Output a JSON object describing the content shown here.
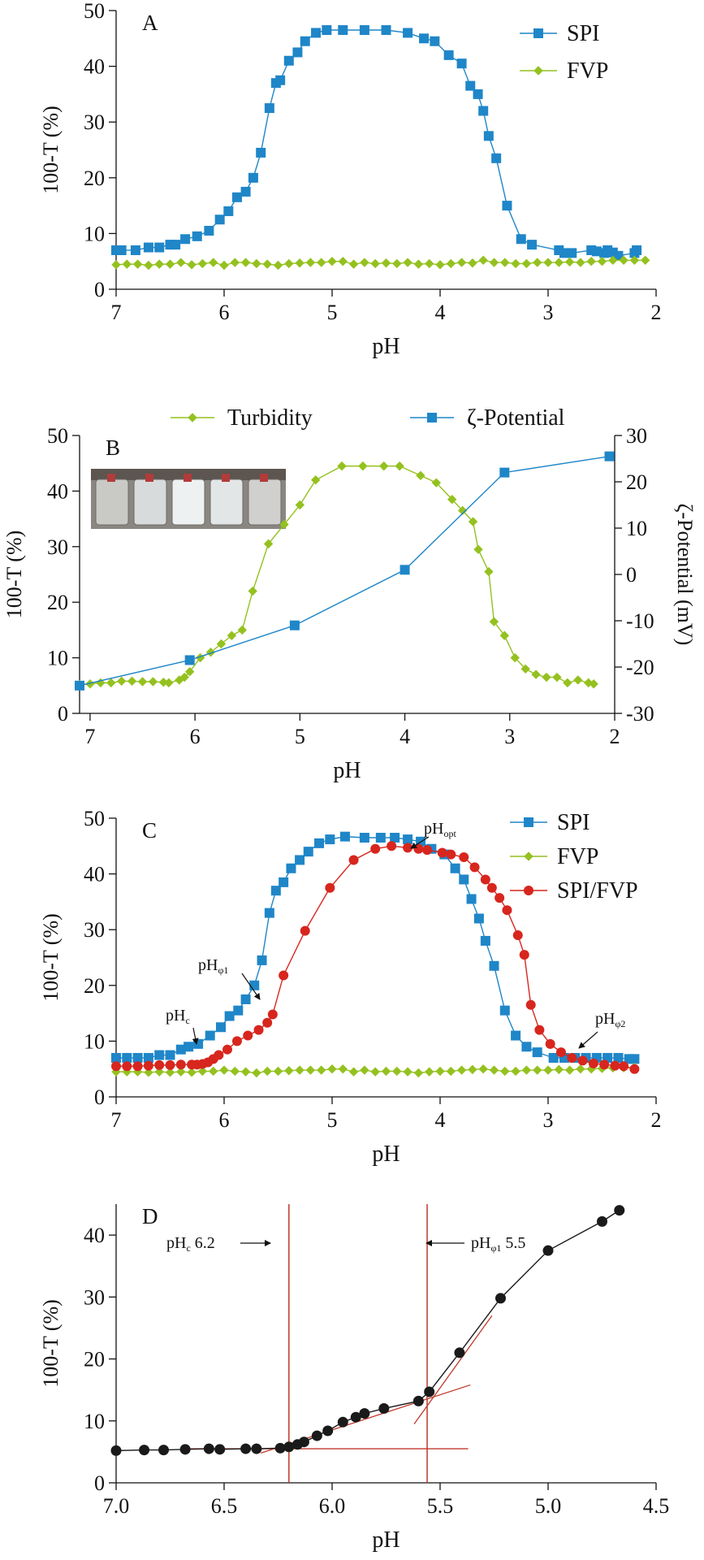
{
  "colors": {
    "spi": "#1f86c8",
    "fvp": "#94c11f",
    "mix": "#d7261e",
    "fit": "#c0392b",
    "black": "#1a1a1a",
    "photo_bg": "#8a8782"
  },
  "chart_data": [
    {
      "panel": "A",
      "type": "line",
      "title": "A",
      "xlabel": "pH",
      "ylabel": "100-T (%)",
      "xlim": [
        7,
        2
      ],
      "ylim": [
        0,
        50
      ],
      "xticks": [
        7,
        6,
        5,
        4,
        3,
        2
      ],
      "yticks": [
        0,
        10,
        20,
        30,
        40,
        50
      ],
      "legend_position": "top-right",
      "series": [
        {
          "name": "SPI",
          "color": "#1f86c8",
          "marker": "square",
          "x": [
            7.0,
            6.95,
            6.82,
            6.7,
            6.6,
            6.5,
            6.45,
            6.36,
            6.25,
            6.14,
            6.04,
            5.96,
            5.88,
            5.8,
            5.73,
            5.66,
            5.58,
            5.52,
            5.48,
            5.4,
            5.32,
            5.25,
            5.15,
            5.05,
            4.9,
            4.7,
            4.5,
            4.3,
            4.15,
            4.05,
            3.92,
            3.8,
            3.72,
            3.65,
            3.6,
            3.55,
            3.48,
            3.38,
            3.25,
            3.15,
            2.9,
            2.85,
            2.78,
            2.6,
            2.55,
            2.48,
            2.45,
            2.4,
            2.35,
            2.2,
            2.18
          ],
          "y": [
            7,
            7,
            7,
            7.5,
            7.5,
            8,
            8,
            9,
            9.5,
            10.5,
            12.5,
            14,
            16.5,
            17.5,
            20,
            24.5,
            32.5,
            37,
            37.5,
            41,
            42.5,
            44.5,
            46,
            46.5,
            46.5,
            46.5,
            46.5,
            46,
            45,
            44.5,
            42,
            40.5,
            36.5,
            35,
            32,
            27.5,
            23.5,
            15,
            9,
            8,
            7,
            6.5,
            6.5,
            7,
            6.8,
            6.5,
            7,
            6.6,
            6,
            6.5,
            7
          ]
        },
        {
          "name": "FVP",
          "color": "#94c11f",
          "marker": "diamond",
          "x": [
            7.0,
            6.9,
            6.8,
            6.7,
            6.6,
            6.5,
            6.4,
            6.3,
            6.2,
            6.1,
            6.0,
            5.9,
            5.8,
            5.7,
            5.6,
            5.5,
            5.4,
            5.3,
            5.2,
            5.1,
            5.0,
            4.9,
            4.8,
            4.7,
            4.6,
            4.5,
            4.4,
            4.3,
            4.2,
            4.1,
            4.0,
            3.9,
            3.8,
            3.7,
            3.6,
            3.5,
            3.4,
            3.3,
            3.2,
            3.1,
            3.0,
            2.9,
            2.8,
            2.7,
            2.6,
            2.5,
            2.4,
            2.3,
            2.2,
            2.1
          ],
          "y": [
            4.4,
            4.5,
            4.5,
            4.3,
            4.5,
            4.5,
            4.8,
            4.4,
            4.6,
            4.8,
            4.3,
            4.8,
            4.8,
            4.6,
            4.5,
            4.3,
            4.6,
            4.7,
            4.8,
            4.8,
            5.0,
            5.0,
            4.5,
            4.8,
            4.6,
            4.7,
            4.6,
            4.8,
            4.5,
            4.6,
            4.4,
            4.6,
            4.8,
            4.7,
            5.2,
            4.8,
            4.8,
            4.6,
            4.6,
            4.8,
            4.8,
            4.8,
            4.9,
            4.8,
            5.0,
            5.0,
            5.2,
            5.2,
            5.2,
            5.2
          ]
        }
      ]
    },
    {
      "panel": "B",
      "type": "line",
      "title": "B",
      "xlabel": "pH",
      "ylabel": "100-T (%)",
      "y2label": "ζ-Potential (mV)",
      "xlim": [
        7.1,
        2
      ],
      "ylim": [
        0,
        50
      ],
      "y2lim": [
        -30,
        30
      ],
      "xticks": [
        7,
        6,
        5,
        4,
        3,
        2
      ],
      "yticks": [
        0,
        10,
        20,
        30,
        40,
        50
      ],
      "y2ticks": [
        -30,
        -20,
        -10,
        0,
        10,
        20,
        30
      ],
      "legend_position": "top",
      "inset": "photo of five glass vials with increasing turbidity",
      "series": [
        {
          "name": "Turbidity",
          "color": "#94c11f",
          "marker": "diamond",
          "axis": "left",
          "x": [
            7.1,
            7.0,
            6.9,
            6.8,
            6.7,
            6.6,
            6.5,
            6.4,
            6.3,
            6.25,
            6.15,
            6.1,
            6.05,
            5.95,
            5.85,
            5.75,
            5.65,
            5.55,
            5.45,
            5.3,
            5.15,
            5.0,
            4.85,
            4.6,
            4.4,
            4.2,
            4.05,
            3.85,
            3.7,
            3.55,
            3.45,
            3.35,
            3.3,
            3.2,
            3.15,
            3.05,
            2.95,
            2.85,
            2.75,
            2.65,
            2.55,
            2.45,
            2.35,
            2.25,
            2.2
          ],
          "y": [
            5.2,
            5.3,
            5.5,
            5.5,
            5.8,
            5.8,
            5.7,
            5.7,
            5.6,
            5.5,
            6,
            6.5,
            7.5,
            10,
            11,
            12.5,
            14,
            15,
            22,
            30.5,
            34,
            37.5,
            42,
            44.5,
            44.5,
            44.5,
            44.5,
            42.8,
            41.5,
            38.5,
            36.5,
            34.5,
            29.5,
            25.5,
            16.5,
            14,
            10,
            8,
            7,
            6.5,
            6.5,
            5.5,
            6.0,
            5.5,
            5.3
          ]
        },
        {
          "name": "ζ-Potential",
          "color": "#1f86c8",
          "marker": "square",
          "axis": "right",
          "x": [
            7.1,
            6.05,
            5.05,
            4.0,
            3.05,
            2.05
          ],
          "y": [
            -24,
            -18.5,
            -11,
            1,
            22,
            25.5
          ]
        }
      ]
    },
    {
      "panel": "C",
      "type": "line",
      "title": "C",
      "xlabel": "pH",
      "ylabel": "100-T (%)",
      "xlim": [
        7,
        2
      ],
      "ylim": [
        0,
        50
      ],
      "xticks": [
        7,
        6,
        5,
        4,
        3,
        2
      ],
      "yticks": [
        0,
        10,
        20,
        30,
        40,
        50
      ],
      "legend_position": "top-right",
      "annotations": [
        {
          "main": "pH",
          "sub": "opt",
          "x": 4.25,
          "y": 45
        },
        {
          "main": "pH",
          "sub": "φ1",
          "x": 5.6,
          "y": 13.5
        },
        {
          "main": "pH",
          "sub": "c",
          "x": 6.2,
          "y": 5.8
        },
        {
          "main": "pH",
          "sub": "φ2",
          "x": 2.72,
          "y": 6.2
        }
      ],
      "series": [
        {
          "name": "SPI",
          "color": "#1f86c8",
          "marker": "square",
          "x": [
            7.0,
            6.9,
            6.8,
            6.7,
            6.6,
            6.5,
            6.4,
            6.33,
            6.24,
            6.13,
            6.03,
            5.95,
            5.87,
            5.8,
            5.72,
            5.65,
            5.58,
            5.52,
            5.45,
            5.38,
            5.3,
            5.22,
            5.12,
            5.02,
            4.88,
            4.7,
            4.55,
            4.42,
            4.3,
            4.18,
            4.08,
            3.96,
            3.86,
            3.78,
            3.71,
            3.64,
            3.58,
            3.5,
            3.4,
            3.3,
            3.2,
            3.1,
            2.95,
            2.85,
            2.75,
            2.65,
            2.55,
            2.45,
            2.35,
            2.25,
            2.2
          ],
          "y": [
            7,
            7,
            7,
            7,
            7.5,
            7.5,
            8.5,
            9,
            9.5,
            11,
            12.5,
            14.5,
            15.5,
            17.5,
            20,
            24.5,
            33,
            37,
            38.5,
            41,
            42.5,
            44,
            45.5,
            46.2,
            46.7,
            46.5,
            46.5,
            46.5,
            46.2,
            45.8,
            44.5,
            43.5,
            41,
            39,
            35.5,
            32,
            28,
            23.5,
            15.5,
            11,
            9,
            8,
            7,
            7,
            7,
            7,
            7,
            7,
            7,
            6.8,
            6.8
          ]
        },
        {
          "name": "FVP",
          "color": "#94c11f",
          "marker": "diamond",
          "x": [
            7.0,
            6.9,
            6.8,
            6.7,
            6.6,
            6.5,
            6.4,
            6.3,
            6.2,
            6.1,
            6.0,
            5.9,
            5.8,
            5.7,
            5.6,
            5.5,
            5.4,
            5.3,
            5.2,
            5.1,
            5.0,
            4.9,
            4.8,
            4.7,
            4.6,
            4.5,
            4.4,
            4.3,
            4.2,
            4.1,
            4.0,
            3.9,
            3.8,
            3.7,
            3.6,
            3.5,
            3.4,
            3.3,
            3.2,
            3.1,
            3.0,
            2.9,
            2.8,
            2.7,
            2.6,
            2.5,
            2.4,
            2.3,
            2.2
          ],
          "y": [
            4.5,
            4.5,
            4.5,
            4.4,
            4.5,
            4.4,
            4.5,
            4.4,
            4.6,
            4.6,
            4.8,
            4.6,
            4.5,
            4.3,
            4.6,
            4.6,
            4.7,
            4.8,
            4.8,
            4.8,
            5.0,
            5.0,
            4.5,
            4.8,
            4.5,
            4.6,
            4.6,
            4.5,
            4.3,
            4.5,
            4.6,
            4.6,
            4.8,
            4.9,
            5.0,
            4.8,
            4.6,
            4.6,
            4.8,
            4.8,
            4.8,
            4.9,
            4.8,
            5.0,
            5.0,
            5.1,
            5.2,
            5.2,
            5.3
          ]
        },
        {
          "name": "SPI/FVP",
          "color": "#d7261e",
          "marker": "circle",
          "x": [
            7.0,
            6.9,
            6.8,
            6.7,
            6.6,
            6.5,
            6.4,
            6.3,
            6.25,
            6.2,
            6.15,
            6.1,
            6.05,
            5.97,
            5.88,
            5.78,
            5.68,
            5.6,
            5.55,
            5.45,
            5.25,
            5.02,
            4.8,
            4.6,
            4.45,
            4.3,
            4.2,
            4.12,
            3.98,
            3.9,
            3.78,
            3.68,
            3.58,
            3.52,
            3.45,
            3.38,
            3.28,
            3.22,
            3.16,
            3.08,
            2.98,
            2.88,
            2.78,
            2.68,
            2.58,
            2.48,
            2.38,
            2.3,
            2.2
          ],
          "y": [
            5.5,
            5.5,
            5.5,
            5.6,
            5.7,
            5.7,
            5.8,
            5.8,
            5.8,
            5.9,
            6.2,
            6.8,
            7.5,
            8.5,
            10,
            11,
            12,
            13.3,
            14.8,
            21.8,
            29.8,
            37.5,
            42.5,
            44.5,
            45,
            44.7,
            44.5,
            44.3,
            43.8,
            43.5,
            43,
            41.2,
            39,
            37.5,
            35.7,
            33.5,
            29,
            25.5,
            16.5,
            12,
            9.5,
            8,
            7,
            6.5,
            6,
            5.8,
            5.6,
            5.5,
            5
          ]
        }
      ]
    },
    {
      "panel": "D",
      "type": "line",
      "title": "D",
      "xlabel": "pH",
      "ylabel": "100-T (%)",
      "xlim": [
        7.0,
        4.5
      ],
      "ylim": [
        0,
        45
      ],
      "xticks": [
        "7.0",
        "6.5",
        "6.0",
        "5.5",
        "5.0",
        "4.5"
      ],
      "xtick_values": [
        7.0,
        6.5,
        6.0,
        5.5,
        5.0,
        4.5
      ],
      "yticks": [
        0,
        10,
        20,
        30,
        40
      ],
      "vertical_lines": [
        6.2,
        5.56
      ],
      "annotations": [
        {
          "main": "pH",
          "sub": "c",
          "rest": " 6.2",
          "arrow": "→"
        },
        {
          "main": "pH",
          "sub": "φ1",
          "rest": " 5.5",
          "arrow": "←"
        }
      ],
      "fit_lines": [
        {
          "name": "baseline",
          "x": [
            6.7,
            5.37
          ],
          "y": [
            5.5,
            5.5
          ]
        },
        {
          "name": "mid-slope",
          "x": [
            6.33,
            5.36
          ],
          "y": [
            4.8,
            15.8
          ]
        },
        {
          "name": "steep-slope",
          "x": [
            5.62,
            5.26
          ],
          "y": [
            9.5,
            27
          ]
        }
      ],
      "series": [
        {
          "name": "SPI/FVP",
          "color": "#1a1a1a",
          "marker": "circle",
          "x": [
            7.0,
            6.87,
            6.78,
            6.68,
            6.57,
            6.52,
            6.4,
            6.35,
            6.24,
            6.2,
            6.16,
            6.13,
            6.07,
            6.02,
            5.95,
            5.89,
            5.85,
            5.76,
            5.6,
            5.55,
            5.41,
            5.22,
            5.0,
            4.75,
            4.67
          ],
          "y": [
            5.2,
            5.3,
            5.3,
            5.4,
            5.5,
            5.4,
            5.5,
            5.5,
            5.6,
            5.8,
            6.2,
            6.6,
            7.6,
            8.4,
            9.8,
            10.6,
            11.2,
            12.0,
            13.2,
            14.7,
            21.0,
            29.8,
            37.5,
            42.2,
            44.0
          ]
        }
      ]
    }
  ]
}
